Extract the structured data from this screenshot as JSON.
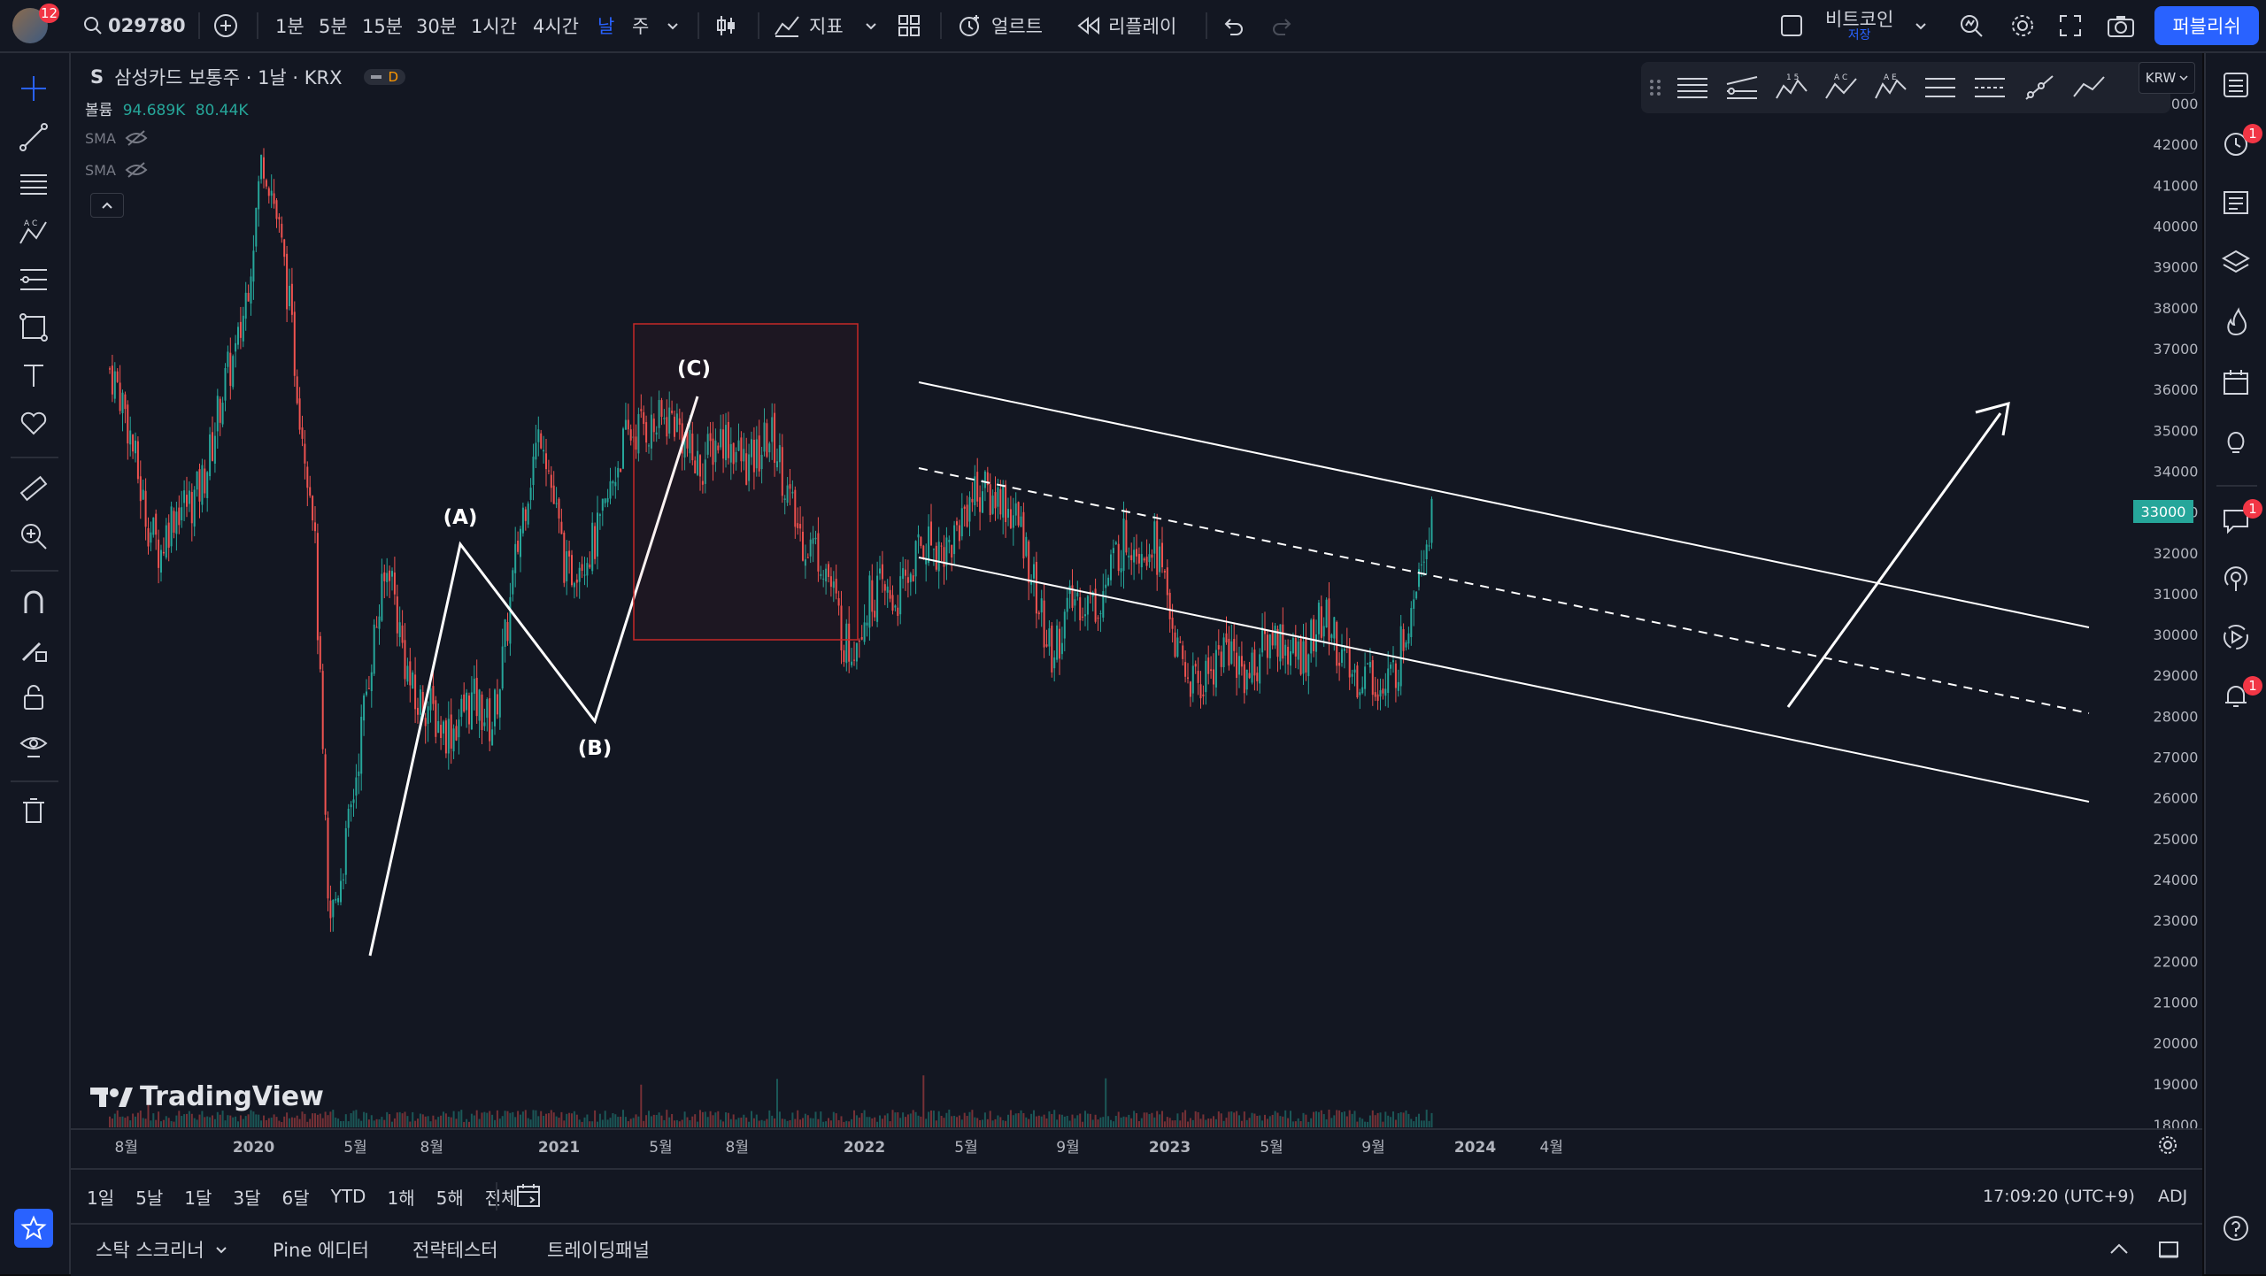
{
  "topbar": {
    "avatar_badge": "12",
    "symbol_search": "029780",
    "intervals": [
      "1분",
      "5분",
      "15분",
      "30분",
      "1시간",
      "4시간",
      "날",
      "주"
    ],
    "active_interval": "날",
    "indicators_label": "지표",
    "alert_label": "얼르트",
    "replay_label": "리플레이",
    "layout_name": "비트코인",
    "layout_saved": "저장",
    "publish_label": "퍼블리쉬"
  },
  "legend": {
    "symbol_prefix": "S",
    "title": "삼성카드 보통주 · 1날 · KRX",
    "status_letter": "D",
    "volume_label": "볼륨",
    "volume_value1": "94.689K",
    "volume_value2": "80.44K",
    "sma1": "SMA",
    "sma2": "SMA"
  },
  "currency": "KRW",
  "price_label": "33000",
  "watermark": "TradingView",
  "annotations": {
    "a": "(A)",
    "b": "(B)",
    "c": "(C)"
  },
  "bottombar": {
    "ranges": [
      "1일",
      "5날",
      "1달",
      "3달",
      "6달",
      "YTD",
      "1해",
      "5해",
      "전체"
    ],
    "time": "17:09:20 (UTC+9)",
    "adj": "ADJ"
  },
  "panels": {
    "screener": "스탁 스크리너",
    "pine": "Pine 에디터",
    "strategy": "전략테스터",
    "trading": "트레이딩패널"
  },
  "right_badges": [
    "1",
    "1",
    "1"
  ],
  "colors": {
    "background": "#131722",
    "up": "#26a69a",
    "down": "#ef5350",
    "accent": "#2962ff",
    "lines": "#ffffff",
    "box": "#c62828"
  },
  "chart_data": {
    "type": "candlestick",
    "ylim": [
      18000,
      43000
    ],
    "yticks": [
      "43000",
      "42000",
      "41000",
      "40000",
      "39000",
      "38000",
      "37000",
      "36000",
      "35000",
      "34000",
      "33000",
      "32000",
      "31000",
      "30000",
      "29000",
      "28000",
      "27000",
      "26000",
      "25000",
      "24000",
      "23000",
      "22000",
      "21000",
      "20000",
      "19000",
      "18000"
    ],
    "xticks": [
      "8월",
      "2020",
      "5월",
      "8월",
      "2021",
      "5월",
      "8월",
      "2022",
      "5월",
      "9월",
      "2023",
      "5월",
      "9월",
      "2024",
      "4월"
    ],
    "last_price": 33000,
    "trend": [
      {
        "date": "2019-07",
        "price": 36500
      },
      {
        "date": "2019-09",
        "price": 32000
      },
      {
        "date": "2019-11",
        "price": 34500
      },
      {
        "date": "2019-12",
        "price": 37000
      },
      {
        "date": "2020-01",
        "price": 41700
      },
      {
        "date": "2020-02",
        "price": 38500
      },
      {
        "date": "2020-03",
        "price": 33000
      },
      {
        "date": "2020-03-19",
        "price": 22500
      },
      {
        "date": "2020-06",
        "price": 32000
      },
      {
        "date": "2020-07",
        "price": 28000
      },
      {
        "date": "2020-10",
        "price": 28000
      },
      {
        "date": "2020-12",
        "price": 35500
      },
      {
        "date": "2021-01",
        "price": 31000
      },
      {
        "date": "2021-04",
        "price": 35500
      },
      {
        "date": "2021-06",
        "price": 34500
      },
      {
        "date": "2021-09",
        "price": 34500
      },
      {
        "date": "2021-12",
        "price": 30000
      },
      {
        "date": "2022-06",
        "price": 33800
      },
      {
        "date": "2022-08",
        "price": 29800
      },
      {
        "date": "2022-12",
        "price": 32800
      },
      {
        "date": "2023-01",
        "price": 29000
      },
      {
        "date": "2023-07",
        "price": 30000
      },
      {
        "date": "2023-09",
        "price": 28300
      },
      {
        "date": "2023-11",
        "price": 32800
      }
    ]
  }
}
